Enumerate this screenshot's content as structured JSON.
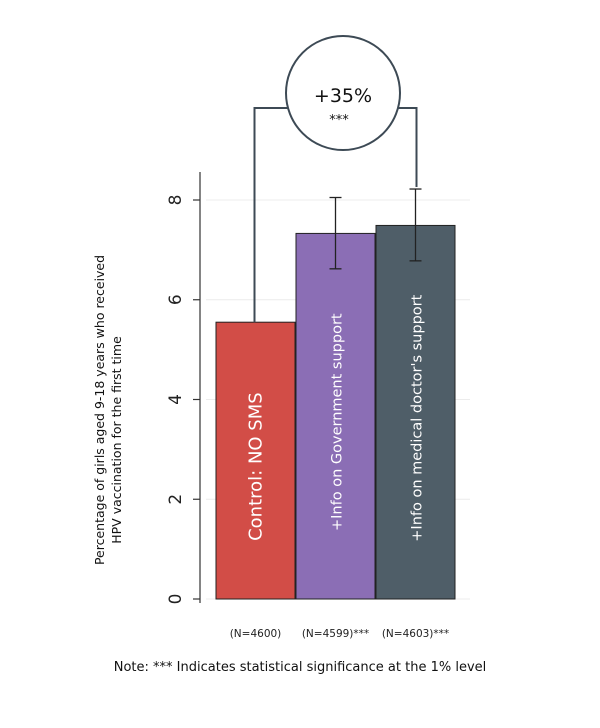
{
  "chart_data": {
    "type": "bar",
    "orientation": "vertical",
    "ylabel": [
      "Percentage of girls aged 9-18 years who received",
      "HPV vaccination for the first time"
    ],
    "ylim": [
      0,
      8
    ],
    "yticks": [
      "0",
      "2",
      "4",
      "6",
      "8"
    ],
    "grid": true,
    "categories": [
      "Control: NO SMS",
      "+Info on Government support",
      "+Info on medical doctor's support"
    ],
    "values": [
      5.55,
      7.33,
      7.49
    ],
    "error_low": [
      null,
      6.62,
      6.78
    ],
    "error_high": [
      null,
      8.05,
      8.22
    ],
    "sample_labels": [
      "(N=4600)",
      "(N=4599)***",
      "(N=4603)***"
    ],
    "colors": [
      "#d24d47",
      "#8b6eb5",
      "#4f5e68"
    ],
    "annotation": {
      "value": "+35%",
      "significance": "***"
    },
    "note": "Note: *** Indicates statistical significance at the 1% level"
  }
}
